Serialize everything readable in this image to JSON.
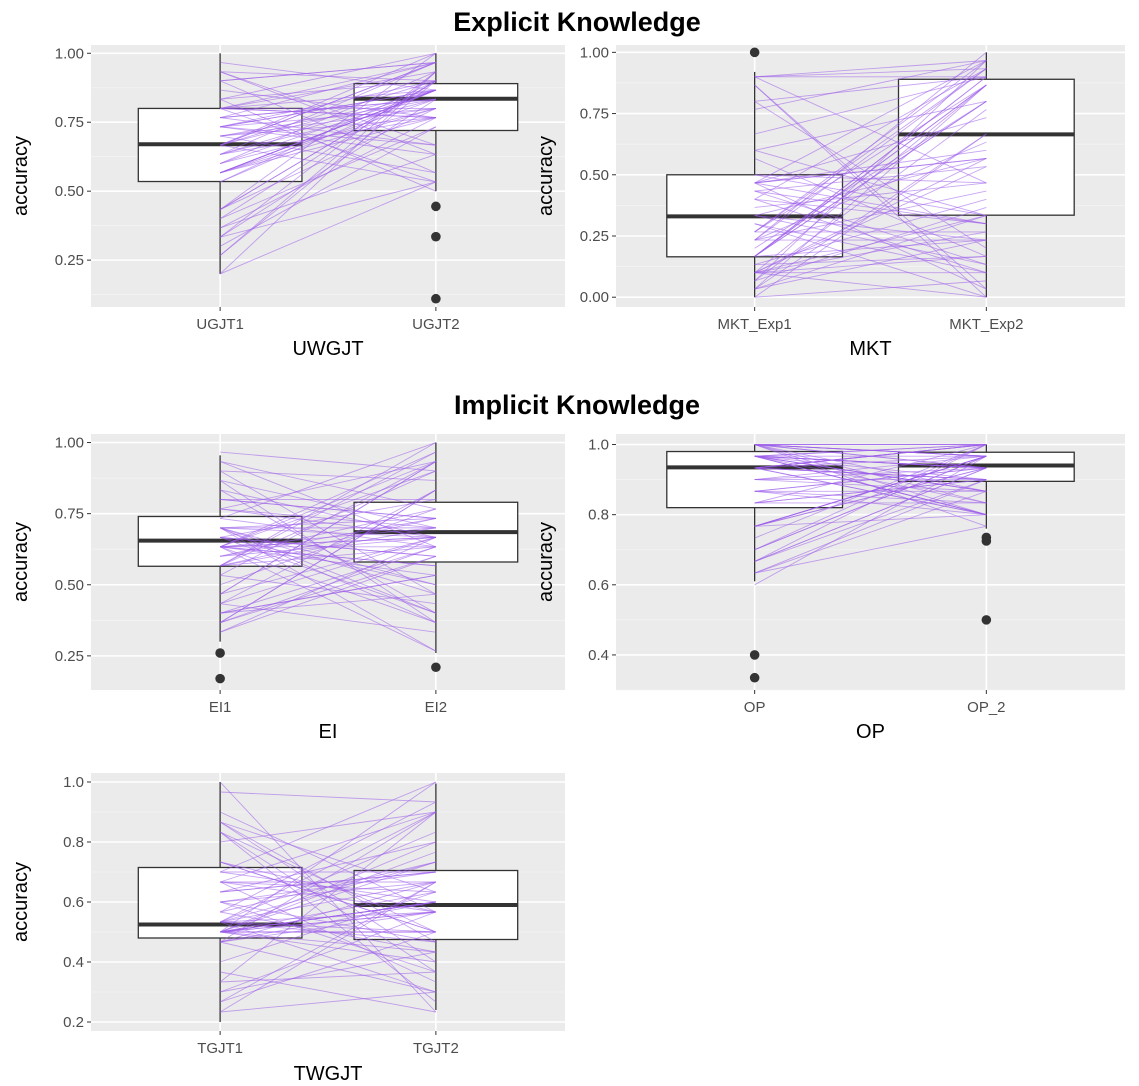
{
  "section_titles": {
    "explicit": "Explicit Knowledge",
    "implicit": "Implicit Knowledge"
  },
  "colors": {
    "pair_line": "#9a5bea",
    "panel_background": "#ebebeb",
    "box_fill": "#ffffff",
    "box_stroke": "#333333"
  },
  "chart_data": [
    {
      "type": "box",
      "section": "Explicit Knowledge",
      "xlabel": "UWGJT",
      "ylabel": "accuracy",
      "categories": [
        "UGJT1",
        "UGJT2"
      ],
      "ylim": [
        0.08,
        1.03
      ],
      "yticks": [
        0.25,
        0.5,
        0.75,
        1.0
      ],
      "ytick_labels": [
        "0.25",
        "0.50",
        "0.75",
        "1.00"
      ],
      "boxes": [
        {
          "min": 0.2,
          "q1": 0.535,
          "median": 0.67,
          "q3": 0.8,
          "max": 1.0,
          "outliers": []
        },
        {
          "min": 0.5,
          "q1": 0.72,
          "median": 0.835,
          "q3": 0.89,
          "max": 1.0,
          "outliers": [
            0.445,
            0.335,
            0.11
          ]
        }
      ],
      "paired_lines": 70,
      "seed": 11
    },
    {
      "type": "box",
      "section": "Explicit Knowledge",
      "xlabel": "MKT",
      "ylabel": "accuracy",
      "categories": [
        "MKT_Exp1",
        "MKT_Exp2"
      ],
      "ylim": [
        -0.04,
        1.03
      ],
      "yticks": [
        0.0,
        0.25,
        0.5,
        0.75,
        1.0
      ],
      "ytick_labels": [
        "0.00",
        "0.25",
        "0.50",
        "0.75",
        "1.00"
      ],
      "boxes": [
        {
          "min": 0.0,
          "q1": 0.165,
          "median": 0.33,
          "q3": 0.5,
          "max": 0.92,
          "outliers": [
            1.0
          ]
        },
        {
          "min": 0.0,
          "q1": 0.335,
          "median": 0.665,
          "q3": 0.89,
          "max": 1.0,
          "outliers": []
        }
      ],
      "paired_lines": 70,
      "seed": 23
    },
    {
      "type": "box",
      "section": "Implicit Knowledge",
      "xlabel": "EI",
      "ylabel": "accuracy",
      "categories": [
        "EI1",
        "EI2"
      ],
      "ylim": [
        0.13,
        1.03
      ],
      "yticks": [
        0.25,
        0.5,
        0.75,
        1.0
      ],
      "ytick_labels": [
        "0.25",
        "0.50",
        "0.75",
        "1.00"
      ],
      "boxes": [
        {
          "min": 0.3,
          "q1": 0.565,
          "median": 0.655,
          "q3": 0.74,
          "max": 0.955,
          "outliers": [
            0.26,
            0.17
          ]
        },
        {
          "min": 0.26,
          "q1": 0.58,
          "median": 0.685,
          "q3": 0.79,
          "max": 1.0,
          "outliers": [
            0.21
          ]
        }
      ],
      "paired_lines": 70,
      "seed": 37
    },
    {
      "type": "box",
      "section": "Implicit Knowledge",
      "xlabel": "OP",
      "ylabel": "accuracy",
      "categories": [
        "OP",
        "OP_2"
      ],
      "ylim": [
        0.3,
        1.03
      ],
      "yticks": [
        0.4,
        0.6,
        0.8,
        1.0
      ],
      "ytick_labels": [
        "0.4",
        "0.6",
        "0.8",
        "1.0"
      ],
      "boxes": [
        {
          "min": 0.61,
          "q1": 0.82,
          "median": 0.935,
          "q3": 0.98,
          "max": 1.0,
          "outliers": [
            0.4,
            0.335
          ]
        },
        {
          "min": 0.76,
          "q1": 0.895,
          "median": 0.94,
          "q3": 0.978,
          "max": 1.0,
          "outliers": [
            0.735,
            0.725,
            0.5
          ]
        }
      ],
      "paired_lines": 70,
      "seed": 53
    },
    {
      "type": "box",
      "section": "Implicit Knowledge",
      "xlabel": "TWGJT",
      "ylabel": "accuracy",
      "categories": [
        "TGJT1",
        "TGJT2"
      ],
      "ylim": [
        0.17,
        1.03
      ],
      "yticks": [
        0.2,
        0.4,
        0.6,
        0.8,
        1.0
      ],
      "ytick_labels": [
        "0.2",
        "0.4",
        "0.6",
        "0.8",
        "1.0"
      ],
      "boxes": [
        {
          "min": 0.2,
          "q1": 0.48,
          "median": 0.525,
          "q3": 0.715,
          "max": 1.0,
          "outliers": []
        },
        {
          "min": 0.24,
          "q1": 0.475,
          "median": 0.59,
          "q3": 0.705,
          "max": 0.995,
          "outliers": []
        }
      ],
      "paired_lines": 70,
      "seed": 71
    }
  ]
}
